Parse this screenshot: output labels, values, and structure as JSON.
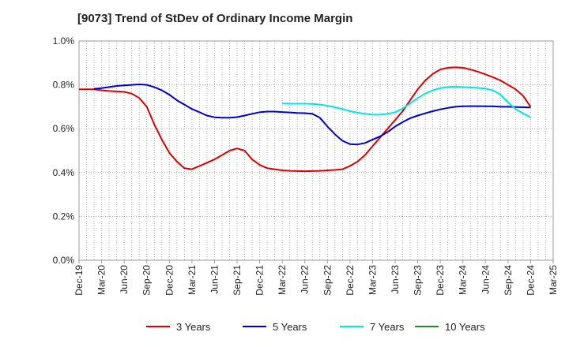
{
  "chart_data": {
    "type": "line",
    "title": "[9073]  Trend of StDev of Ordinary Income Margin",
    "xlabel": "",
    "ylabel": "",
    "ylim": [
      0,
      1.0
    ],
    "y_ticks": [
      "0.0%",
      "0.2%",
      "0.4%",
      "0.6%",
      "0.8%",
      "1.0%"
    ],
    "y_tick_values": [
      0,
      0.2,
      0.4,
      0.6,
      0.8,
      1.0
    ],
    "x_ticks": [
      "Dec-19",
      "Mar-20",
      "Jun-20",
      "Sep-20",
      "Dec-20",
      "Mar-21",
      "Jun-21",
      "Sep-21",
      "Dec-21",
      "Mar-22",
      "Jun-22",
      "Sep-22",
      "Dec-22",
      "Mar-23",
      "Jun-23",
      "Sep-23",
      "Dec-23",
      "Mar-24",
      "Jun-24",
      "Sep-24",
      "Dec-24",
      "Mar-25"
    ],
    "grid": true,
    "legend_position": "bottom",
    "series": [
      {
        "name": "3 Years",
        "color": "#dd0000",
        "points": [
          [
            "Dec-19",
            0.78
          ],
          [
            "Jan-20",
            0.78
          ],
          [
            "Feb-20",
            0.78
          ],
          [
            "Mar-20",
            0.775
          ],
          [
            "Apr-20",
            0.772
          ],
          [
            "May-20",
            0.77
          ],
          [
            "Jun-20",
            0.768
          ],
          [
            "Jul-20",
            0.76
          ],
          [
            "Aug-20",
            0.74
          ],
          [
            "Sep-20",
            0.7
          ],
          [
            "Oct-20",
            0.62
          ],
          [
            "Nov-20",
            0.55
          ],
          [
            "Dec-20",
            0.49
          ],
          [
            "Jan-21",
            0.45
          ],
          [
            "Feb-21",
            0.42
          ],
          [
            "Mar-21",
            0.415
          ],
          [
            "Apr-21",
            0.43
          ],
          [
            "May-21",
            0.445
          ],
          [
            "Jun-21",
            0.46
          ],
          [
            "Jul-21",
            0.48
          ],
          [
            "Aug-21",
            0.5
          ],
          [
            "Sep-21",
            0.51
          ],
          [
            "Oct-21",
            0.5
          ],
          [
            "Nov-21",
            0.46
          ],
          [
            "Dec-21",
            0.435
          ],
          [
            "Jan-22",
            0.42
          ],
          [
            "Feb-22",
            0.415
          ],
          [
            "Mar-22",
            0.41
          ],
          [
            "Apr-22",
            0.408
          ],
          [
            "May-22",
            0.407
          ],
          [
            "Jun-22",
            0.406
          ],
          [
            "Jul-22",
            0.407
          ],
          [
            "Aug-22",
            0.408
          ],
          [
            "Sep-22",
            0.41
          ],
          [
            "Oct-22",
            0.412
          ],
          [
            "Nov-22",
            0.415
          ],
          [
            "Dec-22",
            0.43
          ],
          [
            "Jan-23",
            0.45
          ],
          [
            "Feb-23",
            0.48
          ],
          [
            "Mar-23",
            0.52
          ],
          [
            "Apr-23",
            0.56
          ],
          [
            "May-23",
            0.6
          ],
          [
            "Jun-23",
            0.64
          ],
          [
            "Jul-23",
            0.68
          ],
          [
            "Aug-23",
            0.73
          ],
          [
            "Sep-23",
            0.78
          ],
          [
            "Oct-23",
            0.82
          ],
          [
            "Nov-23",
            0.85
          ],
          [
            "Dec-23",
            0.87
          ],
          [
            "Jan-24",
            0.878
          ],
          [
            "Feb-24",
            0.88
          ],
          [
            "Mar-24",
            0.878
          ],
          [
            "Apr-24",
            0.87
          ],
          [
            "May-24",
            0.86
          ],
          [
            "Jun-24",
            0.848
          ],
          [
            "Jul-24",
            0.835
          ],
          [
            "Aug-24",
            0.82
          ],
          [
            "Sep-24",
            0.8
          ],
          [
            "Oct-24",
            0.78
          ],
          [
            "Nov-24",
            0.75
          ],
          [
            "Dec-24",
            0.7
          ]
        ]
      },
      {
        "name": "5 Years",
        "color": "#0000cc",
        "points": [
          [
            "Feb-20",
            0.782
          ],
          [
            "Mar-20",
            0.785
          ],
          [
            "Apr-20",
            0.79
          ],
          [
            "May-20",
            0.795
          ],
          [
            "Jun-20",
            0.798
          ],
          [
            "Jul-20",
            0.8
          ],
          [
            "Aug-20",
            0.802
          ],
          [
            "Sep-20",
            0.8
          ],
          [
            "Oct-20",
            0.79
          ],
          [
            "Nov-20",
            0.775
          ],
          [
            "Dec-20",
            0.755
          ],
          [
            "Jan-21",
            0.73
          ],
          [
            "Feb-21",
            0.71
          ],
          [
            "Mar-21",
            0.69
          ],
          [
            "Apr-21",
            0.675
          ],
          [
            "May-21",
            0.66
          ],
          [
            "Jun-21",
            0.652
          ],
          [
            "Jul-21",
            0.65
          ],
          [
            "Aug-21",
            0.65
          ],
          [
            "Sep-21",
            0.653
          ],
          [
            "Oct-21",
            0.66
          ],
          [
            "Nov-21",
            0.668
          ],
          [
            "Dec-21",
            0.675
          ],
          [
            "Jan-22",
            0.678
          ],
          [
            "Feb-22",
            0.678
          ],
          [
            "Mar-22",
            0.676
          ],
          [
            "Apr-22",
            0.674
          ],
          [
            "May-22",
            0.672
          ],
          [
            "Jun-22",
            0.671
          ],
          [
            "Jul-22",
            0.668
          ],
          [
            "Aug-22",
            0.65
          ],
          [
            "Sep-22",
            0.61
          ],
          [
            "Oct-22",
            0.575
          ],
          [
            "Nov-22",
            0.545
          ],
          [
            "Dec-22",
            0.53
          ],
          [
            "Jan-23",
            0.528
          ],
          [
            "Feb-23",
            0.535
          ],
          [
            "Mar-23",
            0.55
          ],
          [
            "Apr-23",
            0.565
          ],
          [
            "May-23",
            0.585
          ],
          [
            "Jun-23",
            0.61
          ],
          [
            "Jul-23",
            0.63
          ],
          [
            "Aug-23",
            0.648
          ],
          [
            "Sep-23",
            0.66
          ],
          [
            "Oct-23",
            0.67
          ],
          [
            "Nov-23",
            0.68
          ],
          [
            "Dec-23",
            0.688
          ],
          [
            "Jan-24",
            0.695
          ],
          [
            "Feb-24",
            0.7
          ],
          [
            "Mar-24",
            0.702
          ],
          [
            "Apr-24",
            0.703
          ],
          [
            "May-24",
            0.703
          ],
          [
            "Jun-24",
            0.702
          ],
          [
            "Jul-24",
            0.702
          ],
          [
            "Aug-24",
            0.7
          ],
          [
            "Sep-24",
            0.7
          ],
          [
            "Oct-24",
            0.699
          ],
          [
            "Nov-24",
            0.698
          ],
          [
            "Dec-24",
            0.697
          ]
        ]
      },
      {
        "name": "7 Years",
        "color": "#00e5e5",
        "points": [
          [
            "Mar-22",
            0.715
          ],
          [
            "Apr-22",
            0.714
          ],
          [
            "May-22",
            0.714
          ],
          [
            "Jun-22",
            0.714
          ],
          [
            "Jul-22",
            0.713
          ],
          [
            "Aug-22",
            0.71
          ],
          [
            "Sep-22",
            0.705
          ],
          [
            "Oct-22",
            0.698
          ],
          [
            "Nov-22",
            0.69
          ],
          [
            "Dec-22",
            0.68
          ],
          [
            "Jan-23",
            0.673
          ],
          [
            "Feb-23",
            0.668
          ],
          [
            "Mar-23",
            0.664
          ],
          [
            "Apr-23",
            0.664
          ],
          [
            "May-23",
            0.668
          ],
          [
            "Jun-23",
            0.675
          ],
          [
            "Jul-23",
            0.692
          ],
          [
            "Aug-23",
            0.715
          ],
          [
            "Sep-23",
            0.74
          ],
          [
            "Oct-23",
            0.76
          ],
          [
            "Nov-23",
            0.775
          ],
          [
            "Dec-23",
            0.785
          ],
          [
            "Jan-24",
            0.79
          ],
          [
            "Feb-24",
            0.792
          ],
          [
            "Mar-24",
            0.79
          ],
          [
            "Apr-24",
            0.788
          ],
          [
            "May-24",
            0.786
          ],
          [
            "Jun-24",
            0.783
          ],
          [
            "Jul-24",
            0.775
          ],
          [
            "Aug-24",
            0.755
          ],
          [
            "Sep-24",
            0.72
          ],
          [
            "Oct-24",
            0.69
          ],
          [
            "Nov-24",
            0.67
          ],
          [
            "Dec-24",
            0.652
          ]
        ]
      },
      {
        "name": "10 Years",
        "color": "#228b22",
        "points": []
      }
    ]
  }
}
